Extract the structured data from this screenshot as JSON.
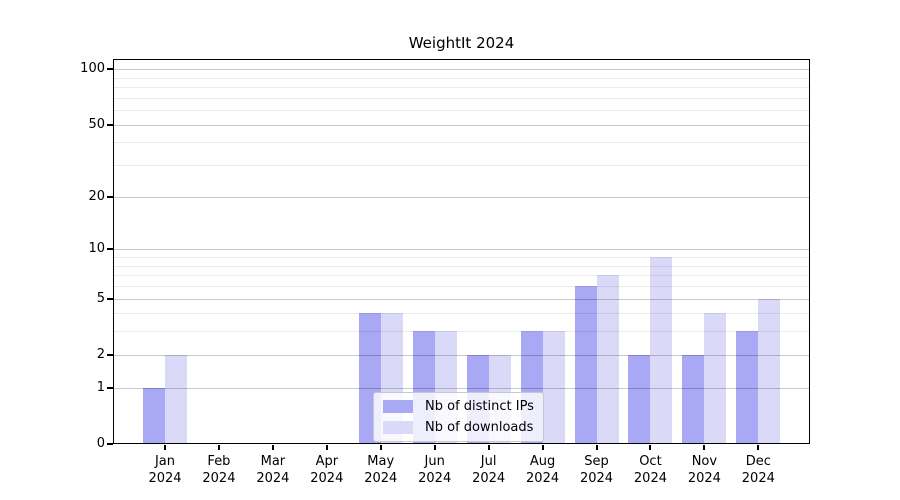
{
  "chart_data": {
    "type": "bar",
    "title": "WeightIt 2024",
    "x_axis": {
      "categories": [
        {
          "month": "Jan",
          "year": "2024"
        },
        {
          "month": "Feb",
          "year": "2024"
        },
        {
          "month": "Mar",
          "year": "2024"
        },
        {
          "month": "Apr",
          "year": "2024"
        },
        {
          "month": "May",
          "year": "2024"
        },
        {
          "month": "Jun",
          "year": "2024"
        },
        {
          "month": "Jul",
          "year": "2024"
        },
        {
          "month": "Aug",
          "year": "2024"
        },
        {
          "month": "Sep",
          "year": "2024"
        },
        {
          "month": "Oct",
          "year": "2024"
        },
        {
          "month": "Nov",
          "year": "2024"
        },
        {
          "month": "Dec",
          "year": "2024"
        }
      ]
    },
    "y_axis": {
      "scale": "log1p",
      "ticks": [
        0,
        1,
        2,
        5,
        10,
        20,
        50,
        100
      ],
      "minor_gridlines": [
        3,
        4,
        6,
        7,
        8,
        9,
        30,
        40,
        60,
        70,
        80,
        90
      ]
    },
    "series": [
      {
        "name": "Nb of distinct IPs",
        "color": "#a8a8f5",
        "values": [
          1,
          0,
          0,
          0,
          4,
          3,
          2,
          3,
          6,
          2,
          2,
          3
        ]
      },
      {
        "name": "Nb of downloads",
        "color": "#dadaf8",
        "values": [
          2,
          0,
          0,
          0,
          4,
          3,
          2,
          3,
          7,
          9,
          4,
          5
        ]
      }
    ],
    "legend": {
      "position": "bottom-center"
    },
    "grid": true
  }
}
